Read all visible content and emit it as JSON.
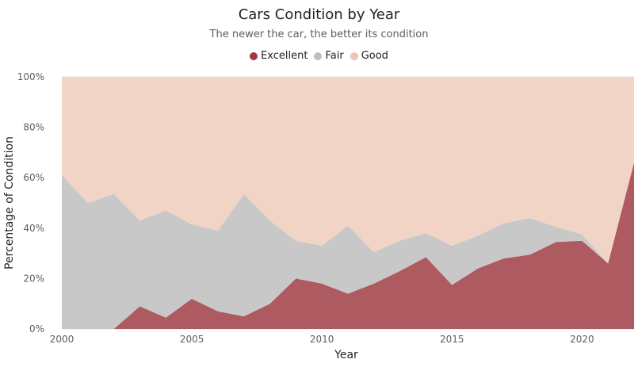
{
  "chart_data": {
    "type": "area",
    "stacked": "percent",
    "title": "Cars Condition by Year",
    "subtitle": "The newer the car, the better its condition",
    "xlabel": "Year",
    "ylabel": "Percentage of Condition",
    "x": [
      2000,
      2001,
      2002,
      2003,
      2004,
      2005,
      2006,
      2007,
      2008,
      2009,
      2010,
      2011,
      2012,
      2013,
      2014,
      2015,
      2016,
      2017,
      2018,
      2019,
      2020,
      2021,
      2022
    ],
    "x_ticks": [
      "2000",
      "2005",
      "2010",
      "2015",
      "2020"
    ],
    "y_ticks": [
      "0%",
      "20%",
      "40%",
      "60%",
      "80%",
      "100%"
    ],
    "ylim": [
      0,
      100
    ],
    "legend_position": "top-center",
    "gridlines": true,
    "series": [
      {
        "name": "Excellent",
        "color": "#ae5a61",
        "values": [
          0,
          0,
          0,
          9,
          4.5,
          12,
          7,
          5,
          10,
          20,
          18,
          14,
          18,
          23,
          28.5,
          17.5,
          24,
          28,
          29.5,
          34.5,
          35,
          26,
          66
        ]
      },
      {
        "name": "Fair",
        "color": "#c8c8c8",
        "values": [
          61,
          50,
          53.5,
          34,
          42.5,
          29.5,
          32,
          48.5,
          33,
          15,
          15,
          27,
          12.5,
          12,
          9.5,
          15.5,
          13,
          14,
          14.5,
          6,
          2.5,
          0,
          0
        ]
      },
      {
        "name": "Good",
        "color": "#f2d4c7",
        "values": [
          39,
          50,
          46.5,
          57,
          53,
          58.5,
          61,
          46.5,
          57,
          65,
          67,
          59,
          69.5,
          65,
          62,
          67,
          63,
          58,
          56,
          59.5,
          62.5,
          74,
          34
        ]
      }
    ]
  },
  "legend": {
    "items": [
      {
        "label": "Excellent",
        "color": "#a4373f"
      },
      {
        "label": "Fair",
        "color": "#bdbdbd"
      },
      {
        "label": "Good",
        "color": "#f0c2b0"
      }
    ]
  }
}
